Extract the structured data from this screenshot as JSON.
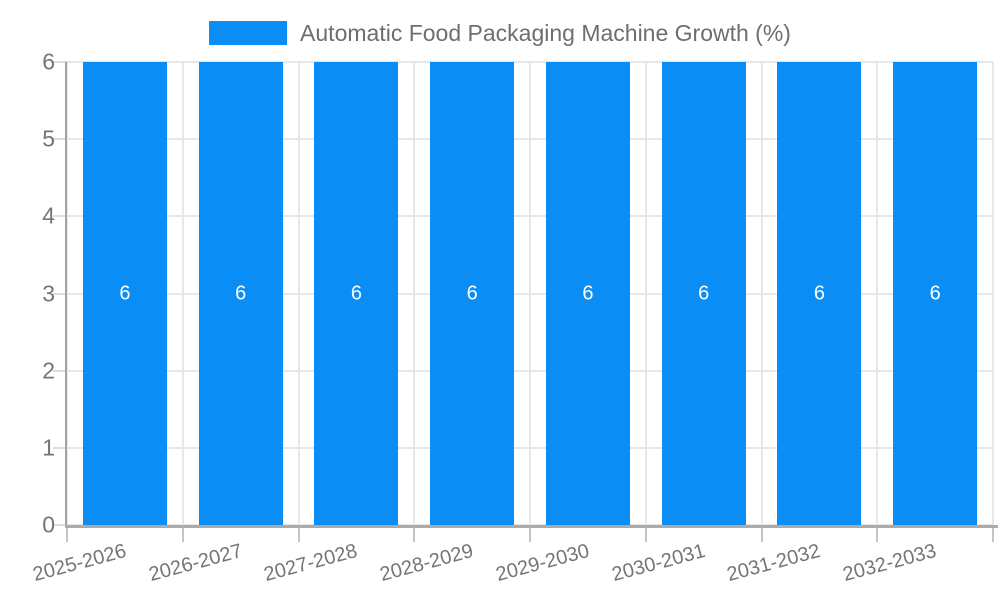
{
  "legend": {
    "label": "Automatic Food Packaging Machine Growth (%)"
  },
  "chart_data": {
    "type": "bar",
    "title": "Automatic Food Packaging Machine Growth (%)",
    "categories": [
      "2025-2026",
      "2026-2027",
      "2027-2028",
      "2028-2029",
      "2029-2030",
      "2030-2031",
      "2031-2032",
      "2032-2033"
    ],
    "values": [
      6,
      6,
      6,
      6,
      6,
      6,
      6,
      6
    ],
    "value_labels": [
      "6",
      "6",
      "6",
      "6",
      "6",
      "6",
      "6",
      "6"
    ],
    "xlabel": "",
    "ylabel": "",
    "ylim": [
      0,
      6
    ],
    "yticks": [
      0,
      1,
      2,
      3,
      4,
      5,
      6
    ],
    "grid": true,
    "legend_position": "top",
    "x_label_rotation": -15,
    "colors": {
      "bar": "#0a8ef6",
      "value_label": "#ffffff",
      "grid": "#e7e7e7",
      "axis": "#a3a3a3",
      "tick": "#c4c4c4",
      "label_text": "#757575",
      "title_text": "#6e6e6e"
    }
  }
}
